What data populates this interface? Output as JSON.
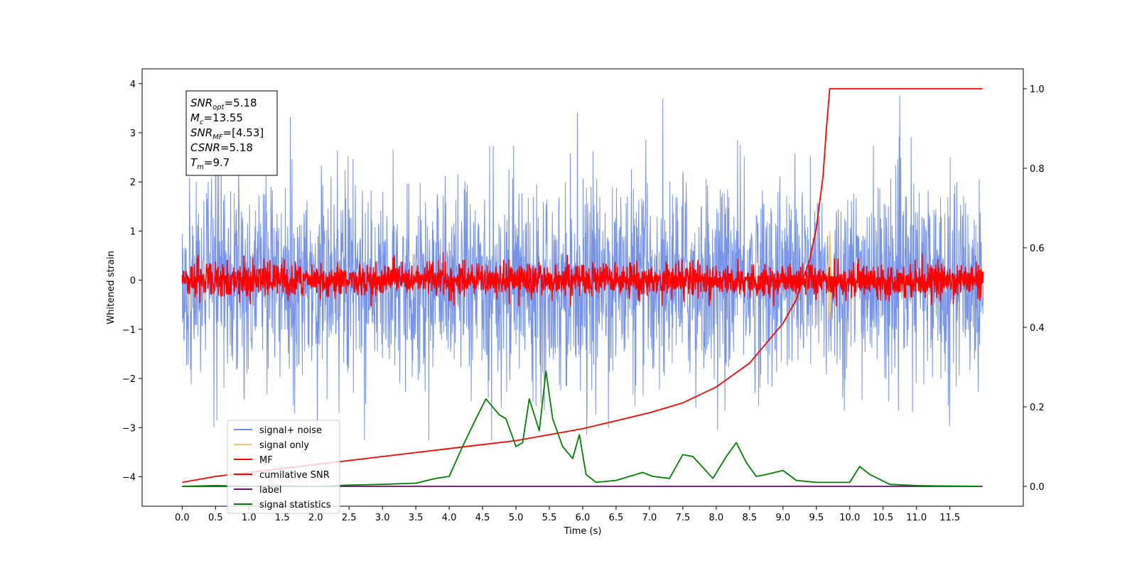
{
  "chart_data": {
    "type": "line",
    "xlabel": "Time (s)",
    "ylabel": "Whitened strain",
    "xlim": [
      -0.6,
      12.6
    ],
    "ylim": [
      -4.6,
      4.3
    ],
    "y2lim": [
      -0.05,
      1.05
    ],
    "x_ticks": [
      0.0,
      0.5,
      1.0,
      1.5,
      2.0,
      2.5,
      3.0,
      3.5,
      4.0,
      4.5,
      5.0,
      5.5,
      6.0,
      6.5,
      7.0,
      7.5,
      8.0,
      8.5,
      9.0,
      9.5,
      10.0,
      10.5,
      11.0,
      11.5
    ],
    "x_tick_labels": [
      "0.0",
      "0.5",
      "1.0",
      "1.5",
      "2.0",
      "2.5",
      "3.0",
      "3.5",
      "4.0",
      "4.5",
      "5.0",
      "5.5",
      "6.0",
      "6.5",
      "7.0",
      "7.5",
      "8.0",
      "8.5",
      "9.0",
      "9.5",
      "10.0",
      "10.5",
      "11.0",
      "11.5"
    ],
    "y_ticks": [
      -4,
      -3,
      -2,
      -1,
      0,
      1,
      2,
      3,
      4
    ],
    "y_tick_labels": [
      "−4",
      "−3",
      "−2",
      "−1",
      "0",
      "1",
      "2",
      "3",
      "4"
    ],
    "y2_ticks": [
      0.0,
      0.2,
      0.4,
      0.6,
      0.8,
      1.0
    ],
    "y2_tick_labels": [
      "0.0",
      "0.2",
      "0.4",
      "0.6",
      "0.8",
      "1.0"
    ],
    "legend_position": "lower-left",
    "series": [
      {
        "name": "signal+ noise",
        "color": "#6f8de8",
        "axis": "left",
        "kind": "noise",
        "x_range": [
          0,
          12
        ],
        "envelope": [
          -2.5,
          2.5
        ]
      },
      {
        "name": "signal only",
        "color": "#f5c97a",
        "axis": "left",
        "kind": "burst",
        "x_center": 9.7,
        "peak": [
          -0.8,
          1.0
        ]
      },
      {
        "name": "MF",
        "color": "#ff0000",
        "axis": "left",
        "kind": "noise",
        "x_range": [
          0,
          12
        ],
        "envelope": [
          -0.4,
          0.6
        ]
      },
      {
        "name": "cumilative SNR",
        "color": "#ff0000",
        "axis": "right",
        "x": [
          0.0,
          0.5,
          1.0,
          1.5,
          2.0,
          2.5,
          3.0,
          3.5,
          4.0,
          4.5,
          5.0,
          5.5,
          6.0,
          6.5,
          7.0,
          7.5,
          8.0,
          8.5,
          9.0,
          9.2,
          9.4,
          9.5,
          9.6,
          9.65,
          9.7,
          10.0,
          11.0,
          11.99
        ],
        "y": [
          0.01,
          0.025,
          0.035,
          0.045,
          0.055,
          0.065,
          0.075,
          0.085,
          0.095,
          0.105,
          0.115,
          0.13,
          0.145,
          0.165,
          0.185,
          0.21,
          0.25,
          0.31,
          0.41,
          0.47,
          0.57,
          0.65,
          0.78,
          0.9,
          1.0,
          1.0,
          1.0,
          1.0
        ]
      },
      {
        "name": "label",
        "color": "#6a0a6a",
        "axis": "right",
        "x": [
          0.0,
          11.99
        ],
        "y": [
          0.0,
          0.0
        ]
      },
      {
        "name": "signal statistics",
        "color": "#008000",
        "axis": "right",
        "x": [
          0.0,
          0.5,
          1.0,
          1.5,
          2.0,
          2.5,
          3.0,
          3.5,
          3.8,
          4.0,
          4.2,
          4.4,
          4.55,
          4.75,
          4.85,
          5.0,
          5.1,
          5.2,
          5.35,
          5.45,
          5.55,
          5.7,
          5.85,
          5.95,
          6.05,
          6.2,
          6.5,
          6.9,
          7.05,
          7.3,
          7.5,
          7.65,
          7.95,
          8.15,
          8.3,
          8.45,
          8.6,
          8.75,
          9.0,
          9.2,
          9.5,
          9.7,
          10.0,
          10.15,
          10.3,
          10.6,
          11.0,
          11.3,
          11.95
        ],
        "y": [
          0.0,
          0.002,
          0.0,
          0.001,
          0.0,
          0.003,
          0.005,
          0.008,
          0.02,
          0.025,
          0.1,
          0.17,
          0.22,
          0.18,
          0.17,
          0.1,
          0.11,
          0.22,
          0.14,
          0.29,
          0.17,
          0.1,
          0.07,
          0.13,
          0.03,
          0.01,
          0.015,
          0.035,
          0.025,
          0.02,
          0.08,
          0.075,
          0.02,
          0.075,
          0.11,
          0.06,
          0.025,
          0.03,
          0.04,
          0.015,
          0.01,
          0.01,
          0.01,
          0.05,
          0.03,
          0.005,
          0.002,
          0.001,
          0.0
        ]
      }
    ],
    "annotation": {
      "lines": [
        {
          "sym": "SNR",
          "sub": "opt",
          "value": "=5.18"
        },
        {
          "sym": "M",
          "sub": "c",
          "value": "=13.55"
        },
        {
          "sym": "SNR",
          "sub": "MF",
          "value": "=[4.53]"
        },
        {
          "sym": "CSNR",
          "sub": "",
          "value": "=5.18"
        },
        {
          "sym": "T",
          "sub": "m",
          "value": "=9.7"
        }
      ]
    }
  }
}
